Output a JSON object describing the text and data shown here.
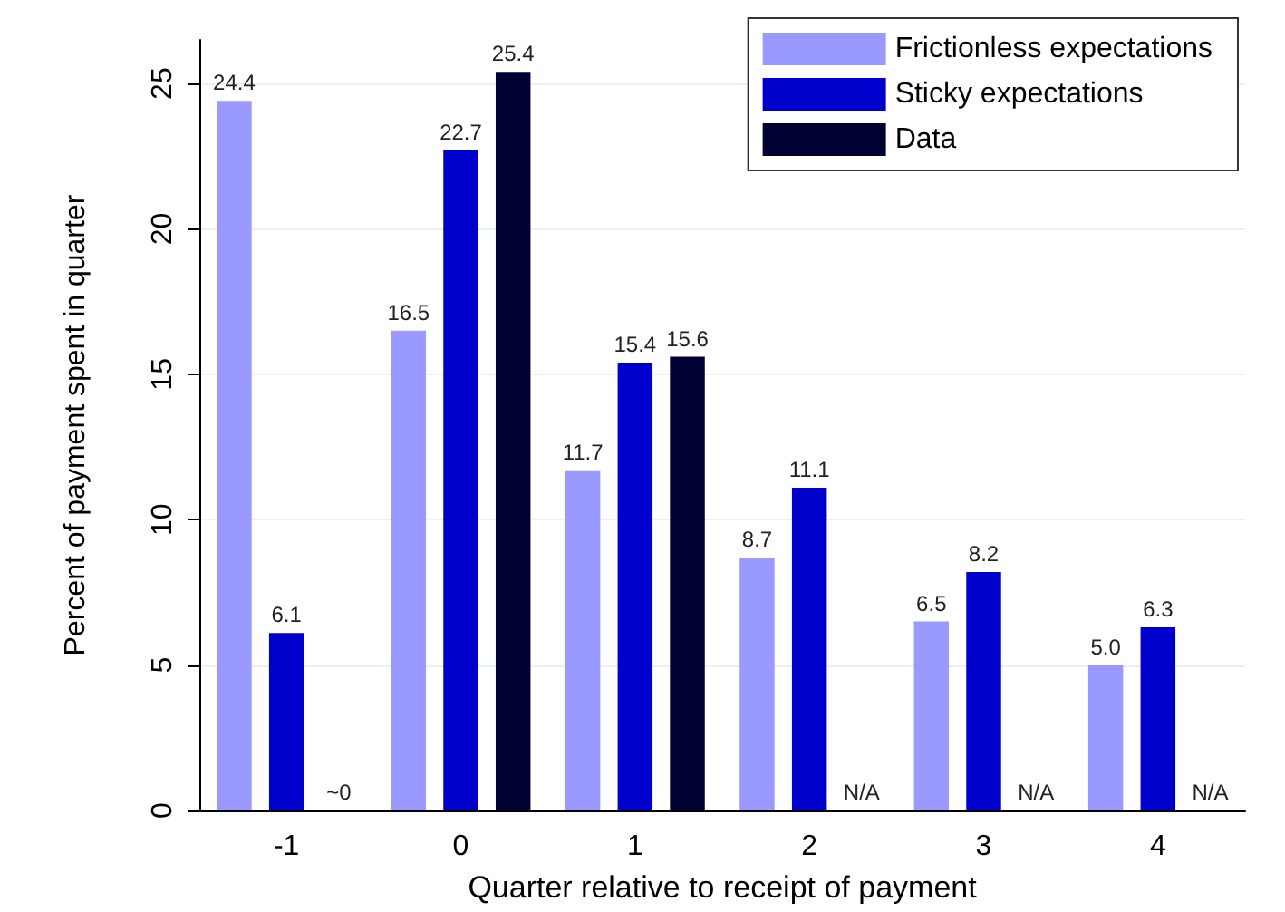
{
  "chart_data": {
    "type": "bar",
    "xlabel": "Quarter relative to receipt of payment",
    "ylabel": "Percent of payment spent in quarter",
    "categories": [
      "-1",
      "0",
      "1",
      "2",
      "3",
      "4"
    ],
    "series": [
      {
        "name": "Frictionless expectations",
        "color": "#9999ff",
        "values": [
          24.4,
          16.5,
          11.7,
          8.7,
          6.5,
          5.0
        ],
        "value_labels": [
          "24.4",
          "16.5",
          "11.7",
          "8.7",
          "6.5",
          "5.0"
        ]
      },
      {
        "name": "Sticky expectations",
        "color": "#0000cc",
        "values": [
          6.1,
          22.7,
          15.4,
          11.1,
          8.2,
          6.3
        ],
        "value_labels": [
          "6.1",
          "22.7",
          "15.4",
          "11.1",
          "8.2",
          "6.3"
        ]
      },
      {
        "name": "Data",
        "color": "#000033",
        "values": [
          null,
          25.4,
          15.6,
          null,
          null,
          null
        ],
        "value_labels": [
          "~0",
          "25.4",
          "15.6",
          "N/A",
          "N/A",
          "N/A"
        ]
      }
    ],
    "ylim": [
      0,
      26.5
    ],
    "yticks": [
      0,
      5,
      10,
      15,
      20,
      25
    ],
    "grid": "y",
    "legend": "top right"
  }
}
